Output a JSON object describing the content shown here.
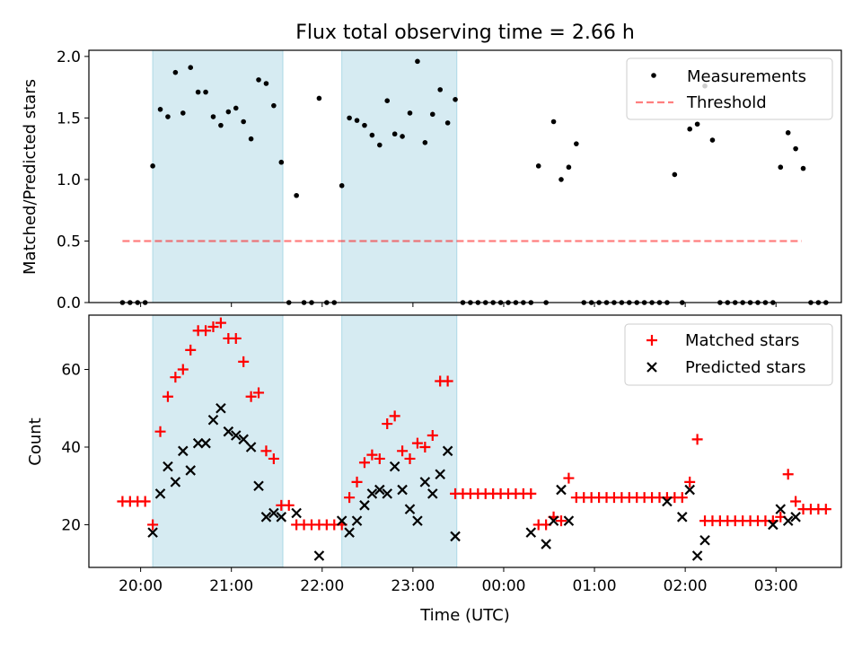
{
  "figure": {
    "title": "Flux total observing time = 2.66 h"
  },
  "colors": {
    "highlight": "#add8e6",
    "threshold": "#ff0000",
    "matched": "#ff0000",
    "predicted": "#000000",
    "measurement": "#000000"
  },
  "chart_data": [
    {
      "type": "scatter",
      "ylabel": "Matched/Predicted stars",
      "ylim": [
        0,
        2.05
      ],
      "yticks": [
        0.0,
        0.5,
        1.0,
        1.5,
        2.0
      ],
      "ytick_labels": [
        "0.0",
        "0.5",
        "1.0",
        "1.5",
        "2.0"
      ],
      "xlim_hours": [
        19.43,
        27.72
      ],
      "highlight_spans": [
        [
          "20:08",
          "21:34"
        ],
        [
          "22:13",
          "23:29"
        ]
      ],
      "legend": {
        "position": "top-right",
        "entries": [
          "Measurements",
          "Threshold"
        ]
      },
      "threshold": {
        "name": "Threshold",
        "value": 0.5,
        "x_range": [
          "19:48",
          "27:17"
        ]
      },
      "series": [
        {
          "name": "Measurements",
          "marker": "dot",
          "points": [
            [
              "19:48",
              0
            ],
            [
              "19:53",
              0
            ],
            [
              "19:58",
              0
            ],
            [
              "20:03",
              0
            ],
            [
              "20:08",
              1.11
            ],
            [
              "20:13",
              1.57
            ],
            [
              "20:18",
              1.51
            ],
            [
              "20:23",
              1.87
            ],
            [
              "20:28",
              1.54
            ],
            [
              "20:33",
              1.91
            ],
            [
              "20:38",
              1.71
            ],
            [
              "20:43",
              1.71
            ],
            [
              "20:48",
              1.51
            ],
            [
              "20:53",
              1.44
            ],
            [
              "20:58",
              1.55
            ],
            [
              "21:03",
              1.58
            ],
            [
              "21:08",
              1.47
            ],
            [
              "21:13",
              1.33
            ],
            [
              "21:18",
              1.81
            ],
            [
              "21:23",
              1.78
            ],
            [
              "21:28",
              1.6
            ],
            [
              "21:33",
              1.14
            ],
            [
              "21:38",
              0
            ],
            [
              "21:43",
              0.87
            ],
            [
              "21:48",
              0
            ],
            [
              "21:53",
              0
            ],
            [
              "21:58",
              1.66
            ],
            [
              "22:03",
              0
            ],
            [
              "22:08",
              0
            ],
            [
              "22:13",
              0.95
            ],
            [
              "22:18",
              1.5
            ],
            [
              "22:23",
              1.48
            ],
            [
              "22:28",
              1.44
            ],
            [
              "22:33",
              1.36
            ],
            [
              "22:38",
              1.28
            ],
            [
              "22:43",
              1.64
            ],
            [
              "22:48",
              1.37
            ],
            [
              "22:53",
              1.35
            ],
            [
              "22:58",
              1.54
            ],
            [
              "23:03",
              1.96
            ],
            [
              "23:08",
              1.3
            ],
            [
              "23:13",
              1.53
            ],
            [
              "23:18",
              1.73
            ],
            [
              "23:23",
              1.46
            ],
            [
              "23:28",
              1.65
            ],
            [
              "23:33",
              0
            ],
            [
              "23:38",
              0
            ],
            [
              "23:43",
              0
            ],
            [
              "23:48",
              0
            ],
            [
              "23:53",
              0
            ],
            [
              "23:58",
              0
            ],
            [
              "24:03",
              0
            ],
            [
              "24:08",
              0
            ],
            [
              "24:13",
              0
            ],
            [
              "24:18",
              0
            ],
            [
              "24:23",
              1.11
            ],
            [
              "24:28",
              0
            ],
            [
              "24:33",
              1.47
            ],
            [
              "24:38",
              1.0
            ],
            [
              "24:43",
              1.1
            ],
            [
              "24:48",
              1.29
            ],
            [
              "24:53",
              0
            ],
            [
              "24:58",
              0
            ],
            [
              "25:03",
              0
            ],
            [
              "25:08",
              0
            ],
            [
              "25:13",
              0
            ],
            [
              "25:18",
              0
            ],
            [
              "25:23",
              0
            ],
            [
              "25:28",
              0
            ],
            [
              "25:33",
              0
            ],
            [
              "25:38",
              0
            ],
            [
              "25:43",
              0
            ],
            [
              "25:48",
              0
            ],
            [
              "25:53",
              1.04
            ],
            [
              "25:58",
              0
            ],
            [
              "26:03",
              1.41
            ],
            [
              "26:08",
              1.45
            ],
            [
              "26:13",
              1.76
            ],
            [
              "26:18",
              1.32
            ],
            [
              "26:23",
              0
            ],
            [
              "26:28",
              0
            ],
            [
              "26:33",
              0
            ],
            [
              "26:38",
              0
            ],
            [
              "26:43",
              0
            ],
            [
              "26:48",
              0
            ],
            [
              "26:53",
              0
            ],
            [
              "26:58",
              0
            ],
            [
              "27:03",
              1.1
            ],
            [
              "27:08",
              1.38
            ],
            [
              "27:13",
              1.25
            ],
            [
              "27:18",
              1.09
            ],
            [
              "27:23",
              0
            ],
            [
              "27:28",
              0
            ],
            [
              "27:33",
              0
            ]
          ]
        }
      ]
    },
    {
      "type": "scatter",
      "ylabel": "Count",
      "xlabel": "Time (UTC)",
      "ylim": [
        9,
        74
      ],
      "yticks": [
        20,
        40,
        60
      ],
      "ytick_labels": [
        "20",
        "40",
        "60"
      ],
      "xlim_hours": [
        19.43,
        27.72
      ],
      "xticks": [
        "20:00",
        "21:00",
        "22:00",
        "23:00",
        "24:00",
        "25:00",
        "26:00",
        "27:00"
      ],
      "xtick_labels": [
        "20:00",
        "21:00",
        "22:00",
        "23:00",
        "00:00",
        "01:00",
        "02:00",
        "03:00"
      ],
      "highlight_spans": [
        [
          "20:08",
          "21:34"
        ],
        [
          "22:13",
          "23:29"
        ]
      ],
      "legend": {
        "position": "top-right",
        "entries": [
          "Matched stars",
          "Predicted stars"
        ]
      },
      "series": [
        {
          "name": "Matched stars",
          "marker": "plus",
          "points": [
            [
              "19:48",
              26
            ],
            [
              "19:53",
              26
            ],
            [
              "19:58",
              26
            ],
            [
              "20:03",
              26
            ],
            [
              "20:08",
              20
            ],
            [
              "20:13",
              44
            ],
            [
              "20:18",
              53
            ],
            [
              "20:23",
              58
            ],
            [
              "20:28",
              60
            ],
            [
              "20:33",
              65
            ],
            [
              "20:38",
              70
            ],
            [
              "20:43",
              70
            ],
            [
              "20:48",
              71
            ],
            [
              "20:53",
              72
            ],
            [
              "20:58",
              68
            ],
            [
              "21:03",
              68
            ],
            [
              "21:08",
              62
            ],
            [
              "21:13",
              53
            ],
            [
              "21:18",
              54
            ],
            [
              "21:23",
              39
            ],
            [
              "21:28",
              37
            ],
            [
              "21:33",
              25
            ],
            [
              "21:38",
              25
            ],
            [
              "21:43",
              20
            ],
            [
              "21:48",
              20
            ],
            [
              "21:53",
              20
            ],
            [
              "21:58",
              20
            ],
            [
              "22:03",
              20
            ],
            [
              "22:08",
              20
            ],
            [
              "22:13",
              20
            ],
            [
              "22:18",
              27
            ],
            [
              "22:23",
              31
            ],
            [
              "22:28",
              36
            ],
            [
              "22:33",
              38
            ],
            [
              "22:38",
              37
            ],
            [
              "22:43",
              46
            ],
            [
              "22:48",
              48
            ],
            [
              "22:53",
              39
            ],
            [
              "22:58",
              37
            ],
            [
              "23:03",
              41
            ],
            [
              "23:08",
              40
            ],
            [
              "23:13",
              43
            ],
            [
              "23:18",
              57
            ],
            [
              "23:23",
              57
            ],
            [
              "23:28",
              28
            ],
            [
              "23:33",
              28
            ],
            [
              "23:38",
              28
            ],
            [
              "23:43",
              28
            ],
            [
              "23:48",
              28
            ],
            [
              "23:53",
              28
            ],
            [
              "23:58",
              28
            ],
            [
              "24:03",
              28
            ],
            [
              "24:08",
              28
            ],
            [
              "24:13",
              28
            ],
            [
              "24:18",
              28
            ],
            [
              "24:23",
              20
            ],
            [
              "24:28",
              20
            ],
            [
              "24:33",
              22
            ],
            [
              "24:38",
              21
            ],
            [
              "24:43",
              32
            ],
            [
              "24:48",
              27
            ],
            [
              "24:53",
              27
            ],
            [
              "24:58",
              27
            ],
            [
              "25:03",
              27
            ],
            [
              "25:08",
              27
            ],
            [
              "25:13",
              27
            ],
            [
              "25:18",
              27
            ],
            [
              "25:23",
              27
            ],
            [
              "25:28",
              27
            ],
            [
              "25:33",
              27
            ],
            [
              "25:38",
              27
            ],
            [
              "25:43",
              27
            ],
            [
              "25:48",
              27
            ],
            [
              "25:53",
              27
            ],
            [
              "25:58",
              27
            ],
            [
              "26:03",
              31
            ],
            [
              "26:08",
              42
            ],
            [
              "26:13",
              21
            ],
            [
              "26:18",
              21
            ],
            [
              "26:23",
              21
            ],
            [
              "26:28",
              21
            ],
            [
              "26:33",
              21
            ],
            [
              "26:38",
              21
            ],
            [
              "26:43",
              21
            ],
            [
              "26:48",
              21
            ],
            [
              "26:53",
              21
            ],
            [
              "26:58",
              21
            ],
            [
              "27:03",
              22
            ],
            [
              "27:08",
              33
            ],
            [
              "27:13",
              26
            ],
            [
              "27:18",
              24
            ],
            [
              "27:23",
              24
            ],
            [
              "27:28",
              24
            ],
            [
              "27:33",
              24
            ]
          ]
        },
        {
          "name": "Predicted stars",
          "marker": "x",
          "points": [
            [
              "20:08",
              18
            ],
            [
              "20:13",
              28
            ],
            [
              "20:18",
              35
            ],
            [
              "20:23",
              31
            ],
            [
              "20:28",
              39
            ],
            [
              "20:33",
              34
            ],
            [
              "20:38",
              41
            ],
            [
              "20:43",
              41
            ],
            [
              "20:48",
              47
            ],
            [
              "20:53",
              50
            ],
            [
              "20:58",
              44
            ],
            [
              "21:03",
              43
            ],
            [
              "21:08",
              42
            ],
            [
              "21:13",
              40
            ],
            [
              "21:18",
              30
            ],
            [
              "21:23",
              22
            ],
            [
              "21:28",
              23
            ],
            [
              "21:33",
              22
            ],
            [
              "21:43",
              23
            ],
            [
              "21:58",
              12
            ],
            [
              "22:13",
              21
            ],
            [
              "22:18",
              18
            ],
            [
              "22:23",
              21
            ],
            [
              "22:28",
              25
            ],
            [
              "22:33",
              28
            ],
            [
              "22:38",
              29
            ],
            [
              "22:43",
              28
            ],
            [
              "22:48",
              35
            ],
            [
              "22:53",
              29
            ],
            [
              "22:58",
              24
            ],
            [
              "23:03",
              21
            ],
            [
              "23:08",
              31
            ],
            [
              "23:13",
              28
            ],
            [
              "23:18",
              33
            ],
            [
              "23:23",
              39
            ],
            [
              "23:28",
              17
            ],
            [
              "24:18",
              18
            ],
            [
              "24:28",
              15
            ],
            [
              "24:33",
              21
            ],
            [
              "24:38",
              29
            ],
            [
              "24:43",
              21
            ],
            [
              "25:48",
              26
            ],
            [
              "25:58",
              22
            ],
            [
              "26:03",
              29
            ],
            [
              "26:08",
              12
            ],
            [
              "26:13",
              16
            ],
            [
              "26:58",
              20
            ],
            [
              "27:03",
              24
            ],
            [
              "27:08",
              21
            ],
            [
              "27:13",
              22
            ]
          ]
        }
      ]
    }
  ]
}
